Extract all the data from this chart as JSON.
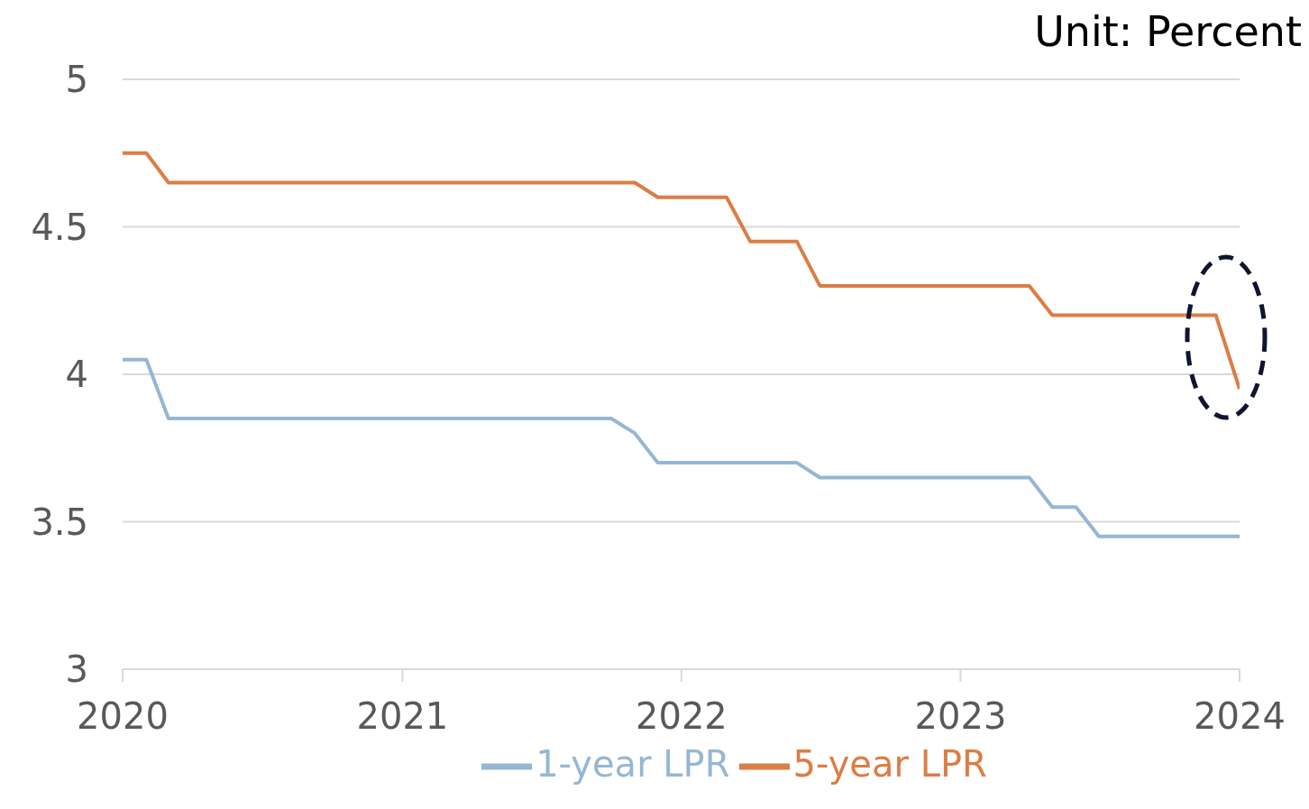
{
  "chart_data": {
    "type": "line",
    "annotations": [
      "Unit: Percent"
    ],
    "x": [
      "2020-01",
      "2020-02",
      "2020-03",
      "2020-04",
      "2020-05",
      "2020-06",
      "2020-07",
      "2020-08",
      "2020-09",
      "2020-10",
      "2020-11",
      "2020-12",
      "2021-01",
      "2021-02",
      "2021-03",
      "2021-04",
      "2021-05",
      "2021-06",
      "2021-07",
      "2021-08",
      "2021-09",
      "2021-10",
      "2021-11",
      "2021-12",
      "2022-01",
      "2022-02",
      "2022-03",
      "2022-04",
      "2022-05",
      "2022-06",
      "2022-07",
      "2022-08",
      "2022-09",
      "2022-10",
      "2022-11",
      "2022-12",
      "2023-01",
      "2023-02",
      "2023-03",
      "2023-04",
      "2023-05",
      "2023-06",
      "2023-07",
      "2023-08",
      "2023-09",
      "2023-10",
      "2023-11",
      "2023-12",
      "2024-01"
    ],
    "series": [
      {
        "name": "1-year LPR",
        "color": "#95b7d4",
        "values": [
          4.05,
          4.05,
          3.85,
          3.85,
          3.85,
          3.85,
          3.85,
          3.85,
          3.85,
          3.85,
          3.85,
          3.85,
          3.85,
          3.85,
          3.85,
          3.85,
          3.85,
          3.85,
          3.85,
          3.85,
          3.85,
          3.85,
          3.8,
          3.7,
          3.7,
          3.7,
          3.7,
          3.7,
          3.7,
          3.7,
          3.65,
          3.65,
          3.65,
          3.65,
          3.65,
          3.65,
          3.65,
          3.65,
          3.65,
          3.65,
          3.55,
          3.55,
          3.45,
          3.45,
          3.45,
          3.45,
          3.45,
          3.45,
          3.45
        ]
      },
      {
        "name": "5-year LPR",
        "color": "#dc7d45",
        "values": [
          4.75,
          4.75,
          4.65,
          4.65,
          4.65,
          4.65,
          4.65,
          4.65,
          4.65,
          4.65,
          4.65,
          4.65,
          4.65,
          4.65,
          4.65,
          4.65,
          4.65,
          4.65,
          4.65,
          4.65,
          4.65,
          4.65,
          4.65,
          4.6,
          4.6,
          4.6,
          4.6,
          4.45,
          4.45,
          4.45,
          4.3,
          4.3,
          4.3,
          4.3,
          4.3,
          4.3,
          4.3,
          4.3,
          4.3,
          4.3,
          4.2,
          4.2,
          4.2,
          4.2,
          4.2,
          4.2,
          4.2,
          4.2,
          3.95
        ]
      }
    ],
    "xlim": [
      "2020-01",
      "2024-01"
    ],
    "xticks": [
      "2020",
      "2021",
      "2022",
      "2023",
      "2024"
    ],
    "ylim": [
      3,
      5
    ],
    "yticks": [
      3,
      3.5,
      4,
      4.5,
      5
    ],
    "grid": "y",
    "legend": "bottom",
    "marker": "none",
    "line_style": "solid"
  }
}
